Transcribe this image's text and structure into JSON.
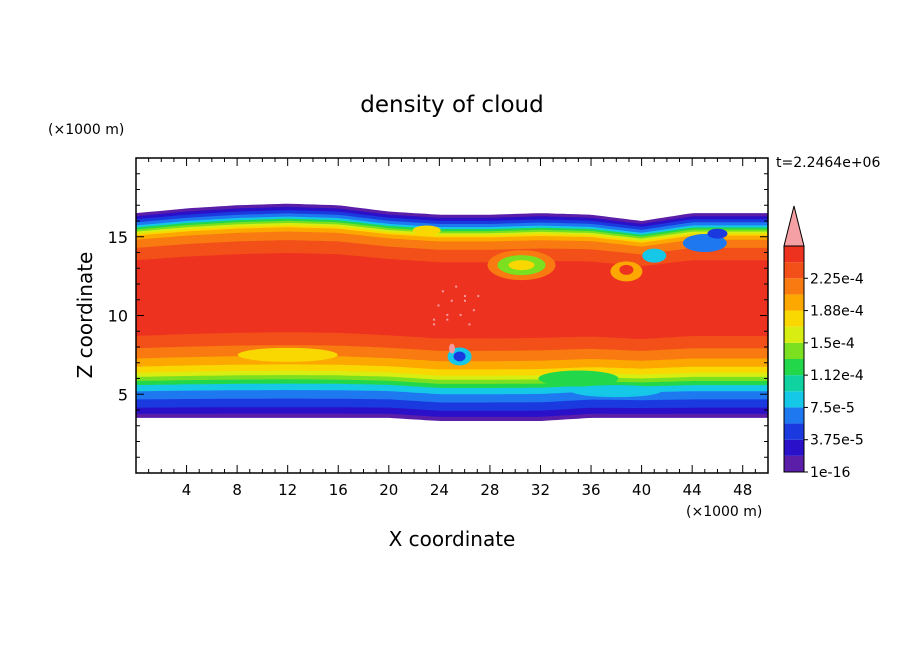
{
  "chart_data": {
    "type": "heatmap",
    "title": "density of cloud",
    "xlabel": "X coordinate",
    "ylabel": "Z coordinate",
    "x_unit": "(×1000 m)",
    "y_unit": "(×1000 m)",
    "time_label": "t=2.2464e+06",
    "xlim": [
      0,
      50
    ],
    "ylim": [
      0,
      20
    ],
    "x_ticks": [
      4,
      8,
      12,
      16,
      20,
      24,
      28,
      32,
      36,
      40,
      44,
      48
    ],
    "y_ticks": [
      5,
      10,
      15
    ],
    "colorbar": {
      "labels": [
        "1e-16",
        "3.75e-5",
        "7.5e-5",
        "1.12e-4",
        "1.5e-4",
        "1.88e-4",
        "2.25e-4"
      ],
      "colors": [
        "#5a1ea8",
        "#2a10c8",
        "#1a3ae0",
        "#1e78f0",
        "#16c8e8",
        "#10d2a0",
        "#22d84a",
        "#7ae020",
        "#d8ee12",
        "#f8d800",
        "#fca800",
        "#f87a10",
        "#f25018",
        "#ee3220",
        "#f59aa0"
      ],
      "extend_max_color": "#f5a0a4"
    },
    "cloud": {
      "x_base": [
        0,
        4,
        8,
        12,
        16,
        20,
        24,
        28,
        32,
        36,
        40,
        44,
        48,
        50
      ],
      "top_km": [
        16.5,
        16.8,
        17.0,
        17.1,
        17.0,
        16.6,
        16.4,
        16.4,
        16.5,
        16.4,
        16.0,
        16.5,
        16.5,
        16.5
      ],
      "base_km": [
        3.5,
        3.5,
        3.5,
        3.5,
        3.5,
        3.5,
        3.3,
        3.3,
        3.3,
        3.5,
        3.5,
        3.5,
        3.5,
        3.5
      ]
    }
  }
}
